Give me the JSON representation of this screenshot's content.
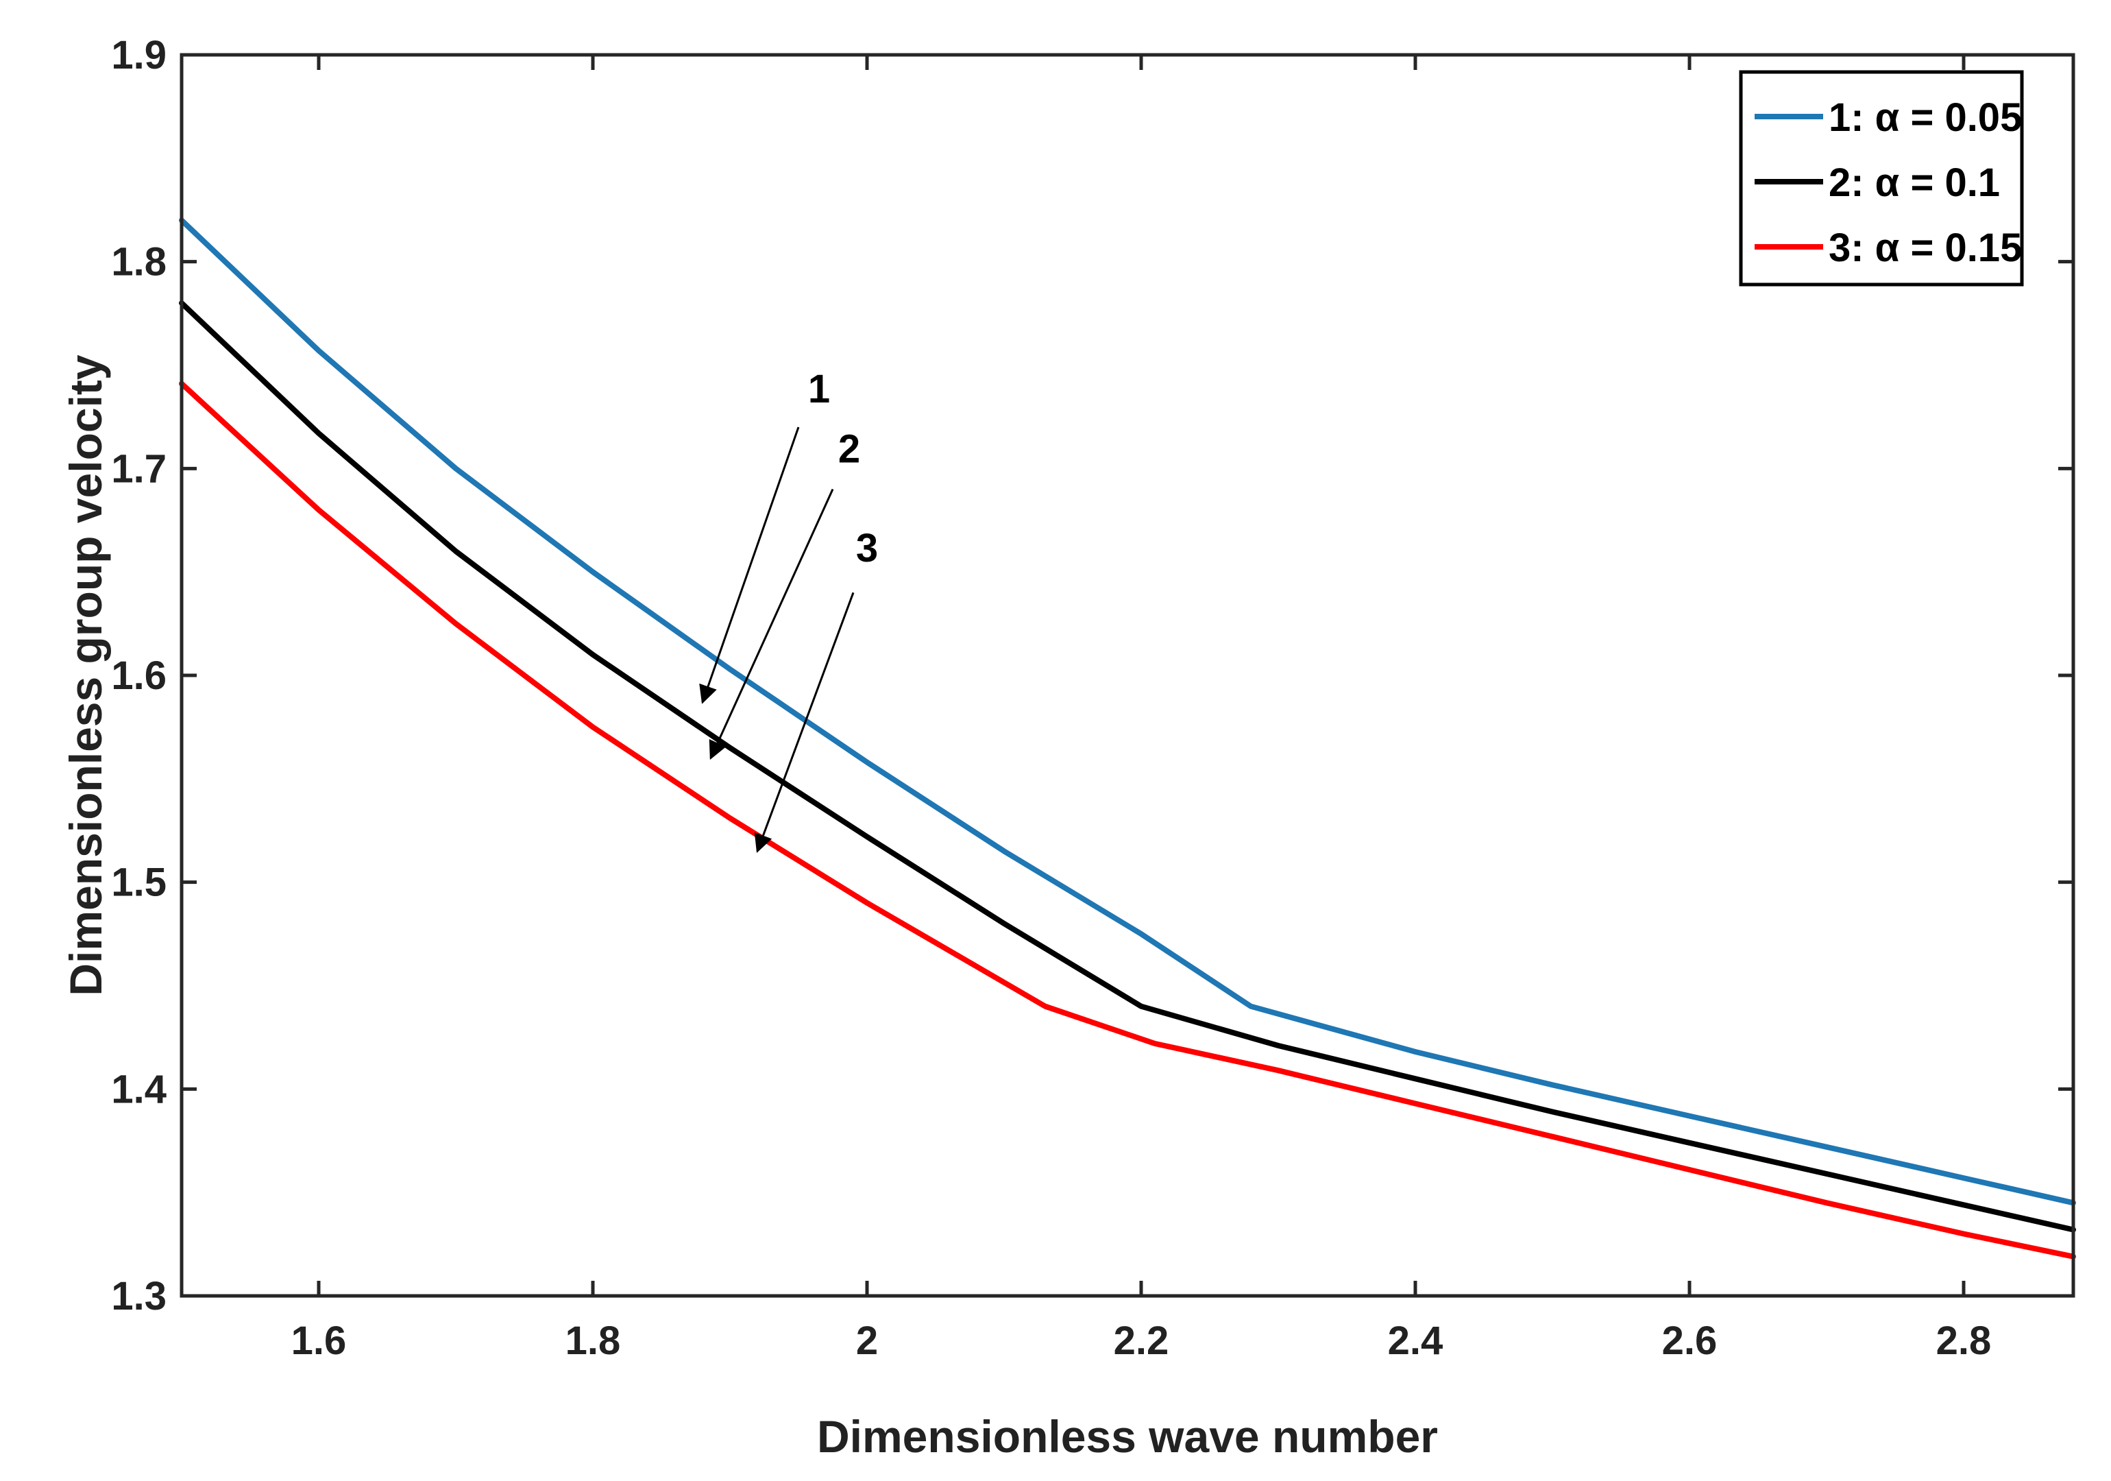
{
  "chart_data": {
    "type": "line",
    "title": "",
    "xlabel": "Dimensionless wave number",
    "ylabel": "Dimensionless group velocity",
    "xlim": [
      1.5,
      2.88
    ],
    "ylim": [
      1.3,
      1.9
    ],
    "xticks": [
      1.6,
      1.8,
      2,
      2.2,
      2.4,
      2.6,
      2.8
    ],
    "xtick_labels": [
      "1.6",
      "1.8",
      "2",
      "2.2",
      "2.4",
      "2.6",
      "2.8"
    ],
    "yticks": [
      1.3,
      1.4,
      1.5,
      1.6,
      1.7,
      1.8,
      1.9
    ],
    "ytick_labels": [
      "1.3",
      "1.4",
      "1.5",
      "1.6",
      "1.7",
      "1.8",
      "1.9"
    ],
    "grid": false,
    "legend_position": "top-right",
    "series": [
      {
        "name": "1: α = 0.05",
        "color": "#1f77b4",
        "x": [
          1.5,
          1.6,
          1.7,
          1.8,
          1.9,
          2.0,
          2.1,
          2.2,
          2.28,
          2.4,
          2.5,
          2.6,
          2.7,
          2.8,
          2.88
        ],
        "y": [
          1.82,
          1.757,
          1.7,
          1.65,
          1.603,
          1.558,
          1.515,
          1.475,
          1.44,
          1.418,
          1.402,
          1.387,
          1.372,
          1.357,
          1.345
        ]
      },
      {
        "name": "2: α = 0.1",
        "color": "#000000",
        "x": [
          1.5,
          1.6,
          1.7,
          1.8,
          1.9,
          2.0,
          2.1,
          2.2,
          2.3,
          2.4,
          2.5,
          2.6,
          2.7,
          2.8,
          2.88
        ],
        "y": [
          1.78,
          1.717,
          1.66,
          1.61,
          1.565,
          1.522,
          1.48,
          1.44,
          1.421,
          1.405,
          1.389,
          1.374,
          1.359,
          1.344,
          1.332
        ]
      },
      {
        "name": "3: α = 0.15",
        "color": "#ff0000",
        "x": [
          1.5,
          1.6,
          1.7,
          1.8,
          1.9,
          2.0,
          2.13,
          2.21,
          2.3,
          2.4,
          2.5,
          2.6,
          2.7,
          2.8,
          2.88
        ],
        "y": [
          1.741,
          1.68,
          1.625,
          1.575,
          1.531,
          1.49,
          1.44,
          1.422,
          1.409,
          1.393,
          1.377,
          1.361,
          1.345,
          1.33,
          1.319
        ]
      }
    ],
    "annotations": [
      {
        "text": "1",
        "text_x": 1.965,
        "text_y": 1.732,
        "arrow_from_x": 1.95,
        "arrow_from_y": 1.72,
        "arrow_to_x": 1.88,
        "arrow_to_y": 1.587
      },
      {
        "text": "2",
        "text_x": 1.987,
        "text_y": 1.703,
        "arrow_from_x": 1.975,
        "arrow_from_y": 1.69,
        "arrow_to_x": 1.886,
        "arrow_to_y": 1.56
      },
      {
        "text": "3",
        "text_x": 2.0,
        "text_y": 1.655,
        "arrow_from_x": 1.99,
        "arrow_from_y": 1.64,
        "arrow_to_x": 1.92,
        "arrow_to_y": 1.515
      }
    ]
  }
}
